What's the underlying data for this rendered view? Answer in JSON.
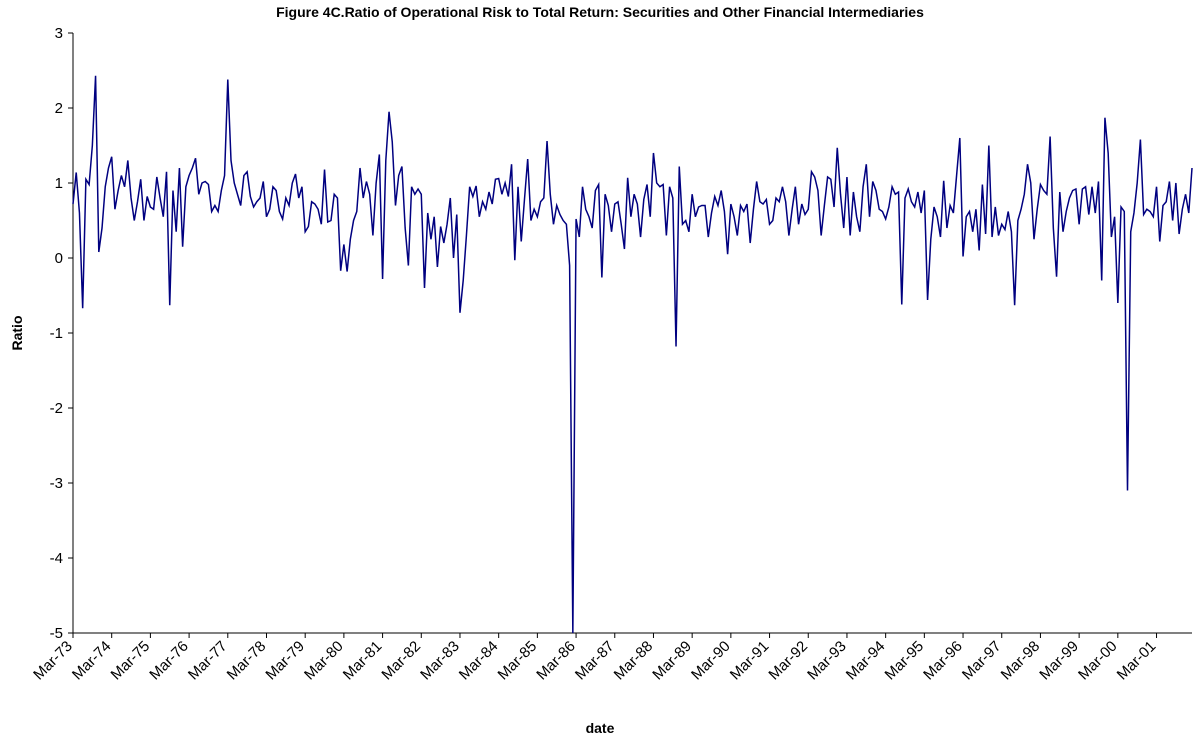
{
  "chart_data": {
    "type": "line",
    "title": "Figure 4C.Ratio of Operational Risk to Total Return: Securities and Other Financial Intermediaries",
    "x_label": "date",
    "y_label": "Ratio",
    "categories": [
      "Mar-73",
      null,
      null,
      null,
      null,
      null,
      null,
      null,
      null,
      null,
      null,
      null,
      "Mar-74",
      null,
      null,
      null,
      null,
      null,
      null,
      null,
      null,
      null,
      null,
      null,
      "Mar-75",
      null,
      null,
      null,
      null,
      null,
      null,
      null,
      null,
      null,
      null,
      null,
      "Mar-76",
      null,
      null,
      null,
      null,
      null,
      null,
      null,
      null,
      null,
      null,
      null,
      "Mar-77",
      null,
      null,
      null,
      null,
      null,
      null,
      null,
      null,
      null,
      null,
      null,
      "Mar-78",
      null,
      null,
      null,
      null,
      null,
      null,
      null,
      null,
      null,
      null,
      null,
      "Mar-79",
      null,
      null,
      null,
      null,
      null,
      null,
      null,
      null,
      null,
      null,
      null,
      "Mar-80",
      null,
      null,
      null,
      null,
      null,
      null,
      null,
      null,
      null,
      null,
      null,
      "Mar-81",
      null,
      null,
      null,
      null,
      null,
      null,
      null,
      null,
      null,
      null,
      null,
      "Mar-82",
      null,
      null,
      null,
      null,
      null,
      null,
      null,
      null,
      null,
      null,
      null,
      "Mar-83",
      null,
      null,
      null,
      null,
      null,
      null,
      null,
      null,
      null,
      null,
      null,
      "Mar-84",
      null,
      null,
      null,
      null,
      null,
      null,
      null,
      null,
      null,
      null,
      null,
      "Mar-85",
      null,
      null,
      null,
      null,
      null,
      null,
      null,
      null,
      null,
      null,
      null,
      "Mar-86",
      null,
      null,
      null,
      null,
      null,
      null,
      null,
      null,
      null,
      null,
      null,
      "Mar-87",
      null,
      null,
      null,
      null,
      null,
      null,
      null,
      null,
      null,
      null,
      null,
      "Mar-88",
      null,
      null,
      null,
      null,
      null,
      null,
      null,
      null,
      null,
      null,
      null,
      "Mar-89",
      null,
      null,
      null,
      null,
      null,
      null,
      null,
      null,
      null,
      null,
      null,
      "Mar-90",
      null,
      null,
      null,
      null,
      null,
      null,
      null,
      null,
      null,
      null,
      null,
      "Mar-91",
      null,
      null,
      null,
      null,
      null,
      null,
      null,
      null,
      null,
      null,
      null,
      "Mar-92",
      null,
      null,
      null,
      null,
      null,
      null,
      null,
      null,
      null,
      null,
      null,
      "Mar-93",
      null,
      null,
      null,
      null,
      null,
      null,
      null,
      null,
      null,
      null,
      null,
      "Mar-94",
      null,
      null,
      null,
      null,
      null,
      null,
      null,
      null,
      null,
      null,
      null,
      "Mar-95",
      null,
      null,
      null,
      null,
      null,
      null,
      null,
      null,
      null,
      null,
      null,
      "Mar-96",
      null,
      null,
      null,
      null,
      null,
      null,
      null,
      null,
      null,
      null,
      null,
      "Mar-97",
      null,
      null,
      null,
      null,
      null,
      null,
      null,
      null,
      null,
      null,
      null,
      "Mar-98",
      null,
      null,
      null,
      null,
      null,
      null,
      null,
      null,
      null,
      null,
      null,
      "Mar-99",
      null,
      null,
      null,
      null,
      null,
      null,
      null,
      null,
      null,
      null,
      null,
      "Mar-00",
      null,
      null,
      null,
      null,
      null,
      null,
      null,
      null,
      null,
      null,
      null,
      "Mar-01",
      null,
      null,
      null,
      null,
      null,
      null,
      null,
      null,
      null,
      null,
      null
    ],
    "series": [
      {
        "color": "#000080",
        "values": [
          0.72,
          1.14,
          0.6,
          -0.67,
          1.05,
          0.98,
          1.5,
          2.43,
          0.08,
          0.4,
          0.95,
          1.2,
          1.35,
          0.65,
          0.9,
          1.1,
          0.95,
          1.3,
          0.8,
          0.5,
          0.75,
          1.05,
          0.5,
          0.82,
          0.68,
          0.65,
          1.08,
          0.8,
          0.55,
          1.15,
          -0.63,
          0.9,
          0.35,
          1.2,
          0.15,
          0.95,
          1.1,
          1.2,
          1.33,
          0.85,
          1.0,
          1.02,
          0.98,
          0.62,
          0.7,
          0.62,
          0.9,
          1.1,
          2.38,
          1.3,
          1.0,
          0.85,
          0.7,
          1.1,
          1.15,
          0.82,
          0.68,
          0.75,
          0.8,
          1.02,
          0.55,
          0.65,
          0.95,
          0.9,
          0.62,
          0.52,
          0.8,
          0.7,
          1.0,
          1.12,
          0.8,
          0.95,
          0.35,
          0.42,
          0.75,
          0.72,
          0.65,
          0.45,
          1.18,
          0.48,
          0.5,
          0.85,
          0.8,
          -0.17,
          0.18,
          -0.18,
          0.25,
          0.5,
          0.62,
          1.2,
          0.8,
          1.02,
          0.85,
          0.3,
          1.0,
          1.38,
          -0.28,
          1.3,
          1.95,
          1.55,
          0.7,
          1.1,
          1.22,
          0.4,
          -0.1,
          0.95,
          0.85,
          0.92,
          0.85,
          -0.4,
          0.6,
          0.25,
          0.55,
          -0.12,
          0.42,
          0.2,
          0.45,
          0.8,
          0.0,
          0.58,
          -0.73,
          -0.3,
          0.3,
          0.95,
          0.82,
          0.96,
          0.55,
          0.75,
          0.65,
          0.88,
          0.72,
          1.05,
          1.06,
          0.85,
          1.0,
          0.82,
          1.25,
          -0.03,
          0.95,
          0.22,
          0.78,
          1.32,
          0.5,
          0.65,
          0.55,
          0.75,
          0.8,
          1.56,
          0.85,
          0.45,
          0.7,
          0.58,
          0.5,
          0.45,
          -0.1,
          -5,
          0.52,
          0.28,
          0.95,
          0.65,
          0.55,
          0.4,
          0.9,
          0.98,
          -0.26,
          0.85,
          0.7,
          0.35,
          0.72,
          0.75,
          0.45,
          0.12,
          1.07,
          0.55,
          0.85,
          0.72,
          0.28,
          0.78,
          0.98,
          0.55,
          1.4,
          1.0,
          0.95,
          0.98,
          0.3,
          0.95,
          0.8,
          -1.18,
          1.22,
          0.45,
          0.5,
          0.35,
          0.85,
          0.55,
          0.68,
          0.7,
          0.7,
          0.28,
          0.6,
          0.82,
          0.7,
          0.9,
          0.62,
          0.05,
          0.72,
          0.55,
          0.3,
          0.7,
          0.62,
          0.72,
          0.2,
          0.65,
          1.02,
          0.75,
          0.72,
          0.78,
          0.45,
          0.5,
          0.8,
          0.75,
          0.95,
          0.75,
          0.3,
          0.65,
          0.95,
          0.45,
          0.72,
          0.58,
          0.65,
          1.15,
          1.08,
          0.9,
          0.3,
          0.7,
          1.08,
          1.05,
          0.68,
          1.47,
          0.85,
          0.4,
          1.08,
          0.3,
          0.88,
          0.55,
          0.35,
          0.95,
          1.25,
          0.55,
          1.02,
          0.9,
          0.65,
          0.62,
          0.52,
          0.68,
          0.95,
          0.85,
          0.88,
          -0.62,
          0.8,
          0.92,
          0.75,
          0.68,
          0.88,
          0.6,
          0.9,
          -0.56,
          0.25,
          0.68,
          0.55,
          0.28,
          1.03,
          0.4,
          0.7,
          0.6,
          1.1,
          1.6,
          0.02,
          0.55,
          0.62,
          0.35,
          0.65,
          0.1,
          0.98,
          0.32,
          1.5,
          0.28,
          0.68,
          0.3,
          0.45,
          0.38,
          0.62,
          0.35,
          -0.63,
          0.5,
          0.65,
          0.85,
          1.25,
          1.0,
          0.25,
          0.65,
          0.98,
          0.9,
          0.85,
          1.62,
          0.4,
          -0.25,
          0.88,
          0.35,
          0.62,
          0.8,
          0.9,
          0.92,
          0.45,
          0.92,
          0.95,
          0.58,
          0.95,
          0.6,
          1.02,
          -0.3,
          1.87,
          1.4,
          0.28,
          0.55,
          -0.6,
          0.68,
          0.62,
          -3.1,
          0.35,
          0.6,
          1.0,
          1.58,
          0.58,
          0.65,
          0.62,
          0.55,
          0.95,
          0.22,
          0.7,
          0.75,
          1.02,
          0.5,
          1.0,
          0.32,
          0.65,
          0.85,
          0.6,
          1.2
        ]
      }
    ],
    "ylim": [
      -5,
      3
    ],
    "yticks": [
      -5,
      -4,
      -3,
      -2,
      -1,
      0,
      1,
      2,
      3
    ]
  }
}
